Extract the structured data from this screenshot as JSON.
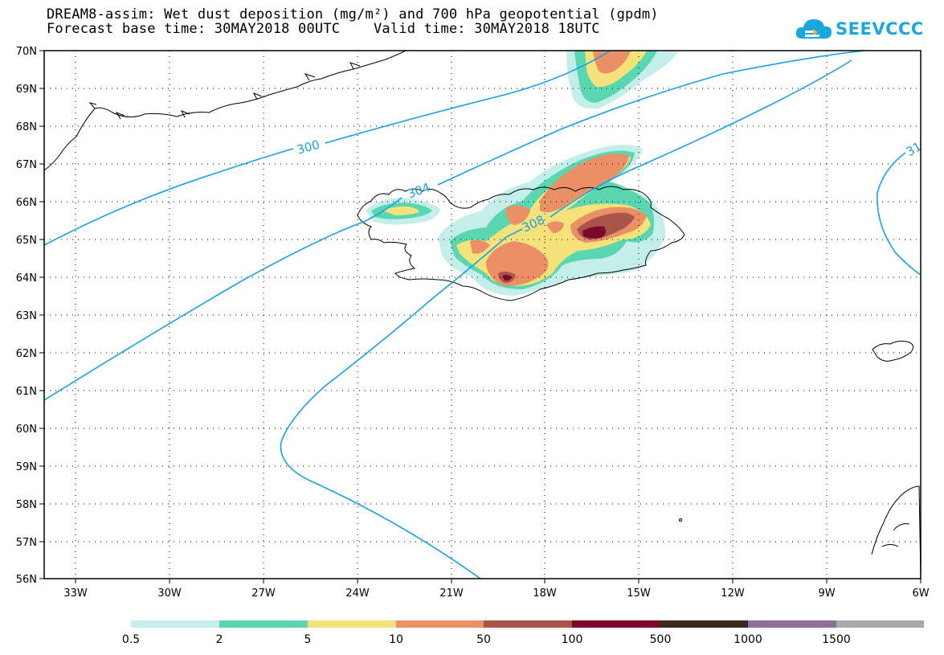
{
  "title": {
    "line1": "DREAM8-assim: Wet dust deposition (mg/m²) and 700 hPa geopotential (gpdm)",
    "line2": "Forecast base time: 30MAY2018 00UTC    Valid time: 30MAY2018 18UTC"
  },
  "logo": {
    "text": "SEEVCCC",
    "icon": "cloud-icon",
    "color": "#1aa7e0"
  },
  "axes": {
    "lon_labels": [
      "33W",
      "30W",
      "27W",
      "24W",
      "21W",
      "18W",
      "15W",
      "12W",
      "9W",
      "6W"
    ],
    "lat_labels": [
      "70N",
      "69N",
      "68N",
      "67N",
      "66N",
      "65N",
      "64N",
      "63N",
      "62N",
      "61N",
      "60N",
      "59N",
      "58N",
      "57N",
      "56N"
    ],
    "lon_range": [
      -34.0,
      -6.0
    ],
    "lat_range": [
      56.0,
      70.0
    ],
    "grid": "dotted"
  },
  "contours": {
    "color": "#1aa0e8",
    "labels": [
      "300",
      "304",
      "308",
      "31"
    ]
  },
  "colorbar": {
    "ticks": [
      "0.5",
      "2",
      "5",
      "10",
      "50",
      "100",
      "500",
      "1000",
      "1500"
    ],
    "colors": [
      "#c4eeea",
      "#5ad7b0",
      "#f5e27a",
      "#ea8f66",
      "#a9554a",
      "#7b0a2a",
      "#3a2a1c",
      "#8e6f9b",
      "#a9a9a9"
    ]
  }
}
